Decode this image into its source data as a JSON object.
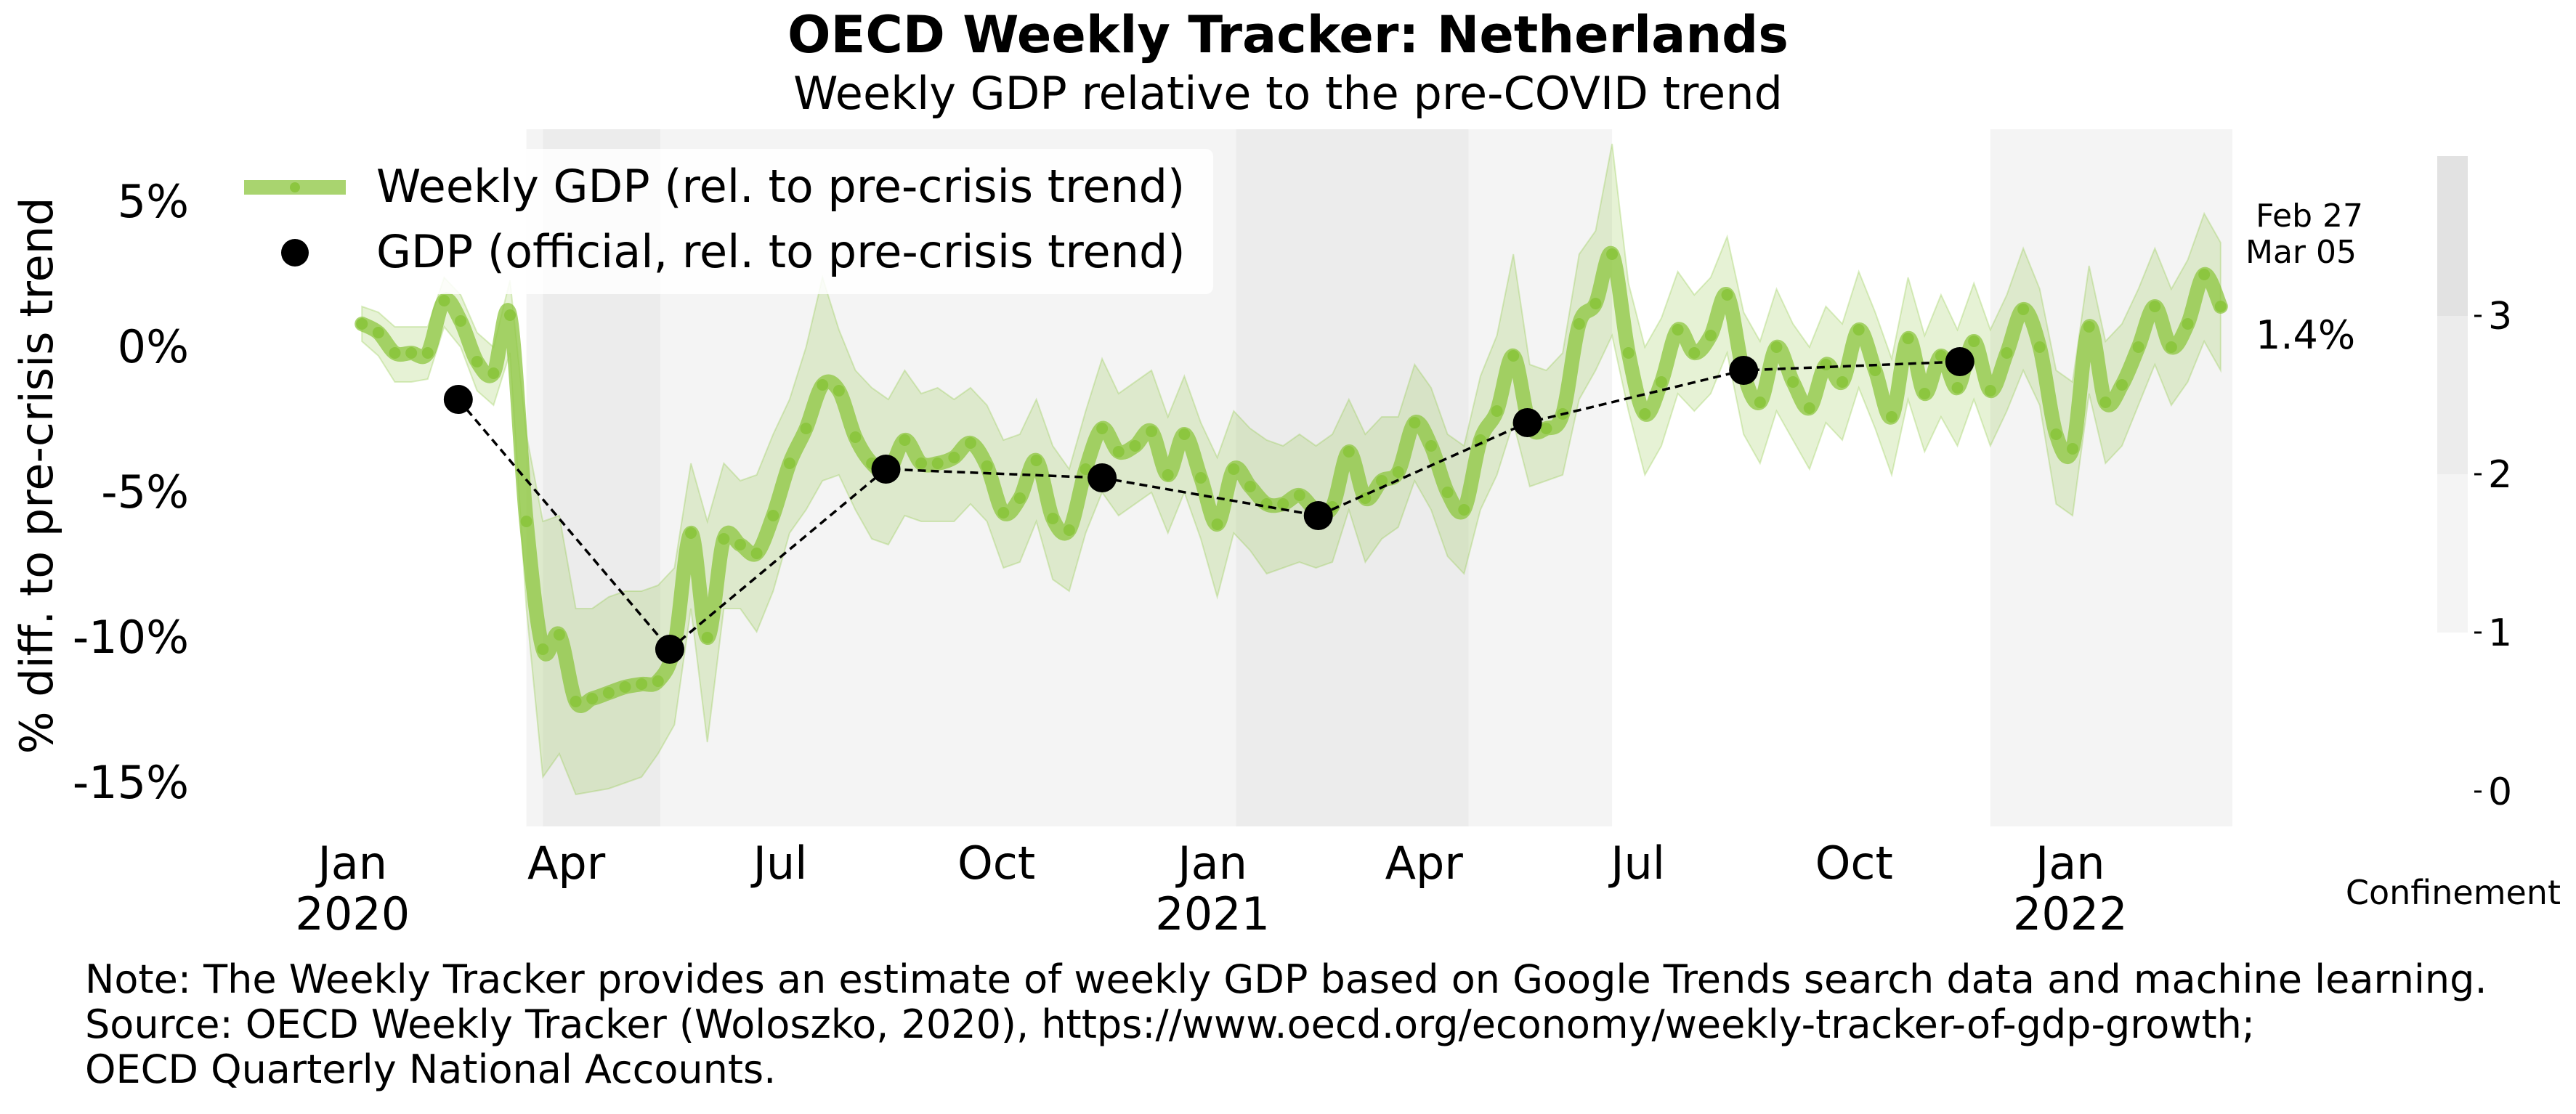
{
  "chart_data": {
    "type": "line",
    "title": "OECD Weekly Tracker: Netherlands",
    "subtitle": "Weekly GDP relative to the pre-COVID trend",
    "ylabel": "% diff. to pre-crisis trend",
    "ylim": [
      -16.5,
      7.5
    ],
    "yticks": [
      {
        "value": 5,
        "label": "5%"
      },
      {
        "value": 0,
        "label": "0%"
      },
      {
        "value": -5,
        "label": "-5%"
      },
      {
        "value": -10,
        "label": "-10%"
      },
      {
        "value": -15,
        "label": "-15%"
      }
    ],
    "xlim": [
      "2019-12-01",
      "2022-03-11"
    ],
    "xticks": [
      {
        "date": "2020-01-01",
        "label": "Jan",
        "year": "2020"
      },
      {
        "date": "2020-04-01",
        "label": "Apr",
        "year": ""
      },
      {
        "date": "2020-07-01",
        "label": "Jul",
        "year": ""
      },
      {
        "date": "2020-10-01",
        "label": "Oct",
        "year": ""
      },
      {
        "date": "2021-01-01",
        "label": "Jan",
        "year": "2021"
      },
      {
        "date": "2021-04-01",
        "label": "Apr",
        "year": ""
      },
      {
        "date": "2021-07-01",
        "label": "Jul",
        "year": ""
      },
      {
        "date": "2021-10-01",
        "label": "Oct",
        "year": ""
      },
      {
        "date": "2022-01-01",
        "label": "Jan",
        "year": "2022"
      }
    ],
    "legend": {
      "placement": "top-left",
      "weekly_label": "Weekly GDP (rel. to pre-crisis trend)",
      "official_label": "GDP (official, rel. to pre-crisis trend)"
    },
    "colors": {
      "weekly": "#8cc63f",
      "band": "#8cc63f",
      "official": "#000000",
      "conf1": "#f4f4f4",
      "conf2": "#ececec",
      "conf3": "#e2e2e2"
    },
    "confinement": {
      "label": "Confinement",
      "ticks": [
        "0",
        "1",
        "2",
        "3"
      ],
      "periods": [
        {
          "start": "2020-03-15",
          "end": "2020-03-22",
          "level": 1
        },
        {
          "start": "2020-03-22",
          "end": "2020-05-11",
          "level": 2
        },
        {
          "start": "2020-05-11",
          "end": "2021-01-11",
          "level": 1
        },
        {
          "start": "2021-01-11",
          "end": "2021-04-20",
          "level": 2
        },
        {
          "start": "2021-04-20",
          "end": "2021-06-20",
          "level": 1
        },
        {
          "start": "2021-11-28",
          "end": "2022-03-11",
          "level": 1
        }
      ]
    },
    "last_dates": [
      "Feb 27",
      "Mar 05"
    ],
    "last_value_label": "1.4%",
    "weekly": [
      {
        "date": "2020-01-05",
        "value": 0.8,
        "lo": 0.2,
        "hi": 1.4
      },
      {
        "date": "2020-01-12",
        "value": 0.5,
        "lo": -0.3,
        "hi": 1.2
      },
      {
        "date": "2020-01-19",
        "value": -0.2,
        "lo": -1.2,
        "hi": 0.7
      },
      {
        "date": "2020-01-26",
        "value": -0.2,
        "lo": -1.2,
        "hi": 0.7
      },
      {
        "date": "2020-02-02",
        "value": -0.2,
        "lo": -1.1,
        "hi": 0.7
      },
      {
        "date": "2020-02-09",
        "value": 1.6,
        "lo": 0.7,
        "hi": 2.4
      },
      {
        "date": "2020-02-16",
        "value": 0.9,
        "lo": 0.0,
        "hi": 1.8
      },
      {
        "date": "2020-02-23",
        "value": -0.5,
        "lo": -1.5,
        "hi": 0.5
      },
      {
        "date": "2020-03-01",
        "value": -0.9,
        "lo": -2.0,
        "hi": 0.0
      },
      {
        "date": "2020-03-08",
        "value": 1.1,
        "lo": -0.2,
        "hi": 2.3
      },
      {
        "date": "2020-03-15",
        "value": -6.0,
        "lo": -9.0,
        "hi": -3.0
      },
      {
        "date": "2020-03-22",
        "value": -10.4,
        "lo": -14.8,
        "hi": -6.0
      },
      {
        "date": "2020-03-29",
        "value": -9.9,
        "lo": -14.0,
        "hi": -5.8
      },
      {
        "date": "2020-04-05",
        "value": -12.2,
        "lo": -15.4,
        "hi": -9.0
      },
      {
        "date": "2020-04-12",
        "value": -12.1,
        "lo": -15.3,
        "hi": -9.0
      },
      {
        "date": "2020-04-19",
        "value": -11.9,
        "lo": -15.2,
        "hi": -8.6
      },
      {
        "date": "2020-04-26",
        "value": -11.7,
        "lo": -15.0,
        "hi": -8.4
      },
      {
        "date": "2020-05-03",
        "value": -11.6,
        "lo": -14.8,
        "hi": -8.4
      },
      {
        "date": "2020-05-10",
        "value": -11.5,
        "lo": -14.0,
        "hi": -8.2
      },
      {
        "date": "2020-05-17",
        "value": -10.3,
        "lo": -13.0,
        "hi": -7.6
      },
      {
        "date": "2020-05-24",
        "value": -6.4,
        "lo": -9.0,
        "hi": -4.0
      },
      {
        "date": "2020-05-31",
        "value": -10.0,
        "lo": -13.6,
        "hi": -6.0
      },
      {
        "date": "2020-06-07",
        "value": -6.6,
        "lo": -9.0,
        "hi": -4.0
      },
      {
        "date": "2020-06-14",
        "value": -6.8,
        "lo": -9.0,
        "hi": -4.6
      },
      {
        "date": "2020-06-21",
        "value": -7.1,
        "lo": -9.8,
        "hi": -4.4
      },
      {
        "date": "2020-06-28",
        "value": -5.8,
        "lo": -8.4,
        "hi": -3.0
      },
      {
        "date": "2020-07-05",
        "value": -4.0,
        "lo": -6.4,
        "hi": -1.8
      },
      {
        "date": "2020-07-12",
        "value": -2.8,
        "lo": -5.6,
        "hi": 0.0
      },
      {
        "date": "2020-07-19",
        "value": -1.3,
        "lo": -4.6,
        "hi": 2.4
      },
      {
        "date": "2020-07-26",
        "value": -1.5,
        "lo": -4.4,
        "hi": 0.6
      },
      {
        "date": "2020-08-02",
        "value": -3.1,
        "lo": -5.6,
        "hi": -0.8
      },
      {
        "date": "2020-08-09",
        "value": -4.0,
        "lo": -6.6,
        "hi": -1.4
      },
      {
        "date": "2020-08-16",
        "value": -4.3,
        "lo": -6.8,
        "hi": -1.8
      },
      {
        "date": "2020-08-23",
        "value": -3.2,
        "lo": -5.8,
        "hi": -0.8
      },
      {
        "date": "2020-08-30",
        "value": -4.0,
        "lo": -6.0,
        "hi": -1.6
      },
      {
        "date": "2020-09-06",
        "value": -4.0,
        "lo": -6.0,
        "hi": -1.4
      },
      {
        "date": "2020-09-13",
        "value": -3.8,
        "lo": -6.0,
        "hi": -1.8
      },
      {
        "date": "2020-09-20",
        "value": -3.3,
        "lo": -5.4,
        "hi": -1.4
      },
      {
        "date": "2020-09-27",
        "value": -4.1,
        "lo": -6.0,
        "hi": -2.0
      },
      {
        "date": "2020-10-04",
        "value": -5.7,
        "lo": -7.6,
        "hi": -3.2
      },
      {
        "date": "2020-10-11",
        "value": -5.2,
        "lo": -7.4,
        "hi": -3.0
      },
      {
        "date": "2020-10-18",
        "value": -3.9,
        "lo": -6.0,
        "hi": -1.8
      },
      {
        "date": "2020-10-25",
        "value": -5.9,
        "lo": -8.0,
        "hi": -3.4
      },
      {
        "date": "2020-11-01",
        "value": -6.3,
        "lo": -8.4,
        "hi": -4.2
      },
      {
        "date": "2020-11-08",
        "value": -4.2,
        "lo": -6.4,
        "hi": -2.2
      },
      {
        "date": "2020-11-15",
        "value": -2.8,
        "lo": -5.0,
        "hi": -0.4
      },
      {
        "date": "2020-11-22",
        "value": -3.6,
        "lo": -5.8,
        "hi": -1.6
      },
      {
        "date": "2020-11-29",
        "value": -3.4,
        "lo": -5.4,
        "hi": -1.2
      },
      {
        "date": "2020-12-06",
        "value": -2.9,
        "lo": -5.0,
        "hi": -0.8
      },
      {
        "date": "2020-12-13",
        "value": -4.4,
        "lo": -6.4,
        "hi": -2.4
      },
      {
        "date": "2020-12-20",
        "value": -3.0,
        "lo": -5.0,
        "hi": -1.0
      },
      {
        "date": "2020-12-27",
        "value": -4.5,
        "lo": -6.6,
        "hi": -2.6
      },
      {
        "date": "2021-01-03",
        "value": -6.1,
        "lo": -8.6,
        "hi": -3.8
      },
      {
        "date": "2021-01-10",
        "value": -4.2,
        "lo": -6.4,
        "hi": -2.2
      },
      {
        "date": "2021-01-17",
        "value": -4.8,
        "lo": -7.0,
        "hi": -2.8
      },
      {
        "date": "2021-01-24",
        "value": -5.4,
        "lo": -7.8,
        "hi": -3.2
      },
      {
        "date": "2021-01-31",
        "value": -5.4,
        "lo": -7.6,
        "hi": -3.4
      },
      {
        "date": "2021-02-07",
        "value": -5.1,
        "lo": -7.4,
        "hi": -3.0
      },
      {
        "date": "2021-02-14",
        "value": -5.6,
        "lo": -7.6,
        "hi": -3.4
      },
      {
        "date": "2021-02-21",
        "value": -5.5,
        "lo": -7.4,
        "hi": -3.0
      },
      {
        "date": "2021-02-28",
        "value": -3.6,
        "lo": -5.6,
        "hi": -1.8
      },
      {
        "date": "2021-03-07",
        "value": -5.2,
        "lo": -7.4,
        "hi": -3.0
      },
      {
        "date": "2021-03-14",
        "value": -4.6,
        "lo": -6.6,
        "hi": -2.4
      },
      {
        "date": "2021-03-21",
        "value": -4.3,
        "lo": -6.2,
        "hi": -2.4
      },
      {
        "date": "2021-03-28",
        "value": -2.6,
        "lo": -4.6,
        "hi": -0.6
      },
      {
        "date": "2021-04-04",
        "value": -3.4,
        "lo": -5.6,
        "hi": -1.4
      },
      {
        "date": "2021-04-11",
        "value": -5.0,
        "lo": -7.2,
        "hi": -3.0
      },
      {
        "date": "2021-04-18",
        "value": -5.6,
        "lo": -7.8,
        "hi": -3.4
      },
      {
        "date": "2021-04-25",
        "value": -3.2,
        "lo": -5.6,
        "hi": -1.0
      },
      {
        "date": "2021-05-02",
        "value": -2.2,
        "lo": -4.4,
        "hi": 0.4
      },
      {
        "date": "2021-05-09",
        "value": -0.3,
        "lo": -2.6,
        "hi": 3.2
      },
      {
        "date": "2021-05-16",
        "value": -2.7,
        "lo": -4.8,
        "hi": -0.6
      },
      {
        "date": "2021-05-23",
        "value": -2.8,
        "lo": -4.6,
        "hi": -0.8
      },
      {
        "date": "2021-05-30",
        "value": -2.3,
        "lo": -4.4,
        "hi": -0.2
      },
      {
        "date": "2021-06-06",
        "value": 0.8,
        "lo": -1.8,
        "hi": 3.2
      },
      {
        "date": "2021-06-13",
        "value": 1.5,
        "lo": -0.8,
        "hi": 4.0
      },
      {
        "date": "2021-06-20",
        "value": 3.2,
        "lo": 0.4,
        "hi": 7.0
      },
      {
        "date": "2021-06-27",
        "value": -0.2,
        "lo": -2.2,
        "hi": 2.2
      },
      {
        "date": "2021-07-04",
        "value": -2.3,
        "lo": -4.4,
        "hi": 0.0
      },
      {
        "date": "2021-07-11",
        "value": -1.2,
        "lo": -3.4,
        "hi": 1.0
      },
      {
        "date": "2021-07-18",
        "value": 0.6,
        "lo": -1.6,
        "hi": 2.6
      },
      {
        "date": "2021-07-25",
        "value": -0.2,
        "lo": -2.2,
        "hi": 1.8
      },
      {
        "date": "2021-08-01",
        "value": 0.4,
        "lo": -1.6,
        "hi": 2.4
      },
      {
        "date": "2021-08-08",
        "value": 1.8,
        "lo": -0.2,
        "hi": 3.8
      },
      {
        "date": "2021-08-15",
        "value": -0.9,
        "lo": -3.0,
        "hi": 1.2
      },
      {
        "date": "2021-08-22",
        "value": -1.9,
        "lo": -4.0,
        "hi": 0.2
      },
      {
        "date": "2021-08-29",
        "value": 0.0,
        "lo": -2.2,
        "hi": 2.0
      },
      {
        "date": "2021-09-05",
        "value": -1.2,
        "lo": -3.2,
        "hi": 0.8
      },
      {
        "date": "2021-09-12",
        "value": -2.1,
        "lo": -4.2,
        "hi": 0.0
      },
      {
        "date": "2021-09-19",
        "value": -0.6,
        "lo": -2.6,
        "hi": 1.4
      },
      {
        "date": "2021-09-26",
        "value": -1.2,
        "lo": -3.2,
        "hi": 0.8
      },
      {
        "date": "2021-10-03",
        "value": 0.6,
        "lo": -1.4,
        "hi": 2.6
      },
      {
        "date": "2021-10-10",
        "value": -0.8,
        "lo": -2.8,
        "hi": 1.2
      },
      {
        "date": "2021-10-17",
        "value": -2.4,
        "lo": -4.4,
        "hi": -0.4
      },
      {
        "date": "2021-10-24",
        "value": 0.3,
        "lo": -1.8,
        "hi": 2.4
      },
      {
        "date": "2021-10-31",
        "value": -1.6,
        "lo": -3.6,
        "hi": 0.4
      },
      {
        "date": "2021-11-07",
        "value": -0.3,
        "lo": -2.4,
        "hi": 1.8
      },
      {
        "date": "2021-11-14",
        "value": -1.4,
        "lo": -3.4,
        "hi": 0.6
      },
      {
        "date": "2021-11-21",
        "value": 0.2,
        "lo": -1.8,
        "hi": 2.2
      },
      {
        "date": "2021-11-28",
        "value": -1.5,
        "lo": -3.4,
        "hi": 0.6
      },
      {
        "date": "2021-12-05",
        "value": -0.2,
        "lo": -2.2,
        "hi": 1.8
      },
      {
        "date": "2021-12-12",
        "value": 1.3,
        "lo": -0.8,
        "hi": 3.4
      },
      {
        "date": "2021-12-19",
        "value": 0.0,
        "lo": -2.0,
        "hi": 2.0
      },
      {
        "date": "2021-12-26",
        "value": -3.0,
        "lo": -5.4,
        "hi": -0.8
      },
      {
        "date": "2022-01-02",
        "value": -3.5,
        "lo": -5.8,
        "hi": -1.2
      },
      {
        "date": "2022-01-09",
        "value": 0.7,
        "lo": -1.6,
        "hi": 2.8
      },
      {
        "date": "2022-01-16",
        "value": -1.9,
        "lo": -4.0,
        "hi": 0.2
      },
      {
        "date": "2022-01-23",
        "value": -1.3,
        "lo": -3.4,
        "hi": 0.8
      },
      {
        "date": "2022-01-30",
        "value": 0.0,
        "lo": -2.0,
        "hi": 2.0
      },
      {
        "date": "2022-02-06",
        "value": 1.4,
        "lo": -0.6,
        "hi": 3.4
      },
      {
        "date": "2022-02-13",
        "value": 0.0,
        "lo": -2.0,
        "hi": 2.0
      },
      {
        "date": "2022-02-20",
        "value": 0.8,
        "lo": -1.2,
        "hi": 3.0
      },
      {
        "date": "2022-02-27",
        "value": 2.5,
        "lo": 0.2,
        "hi": 4.6
      },
      {
        "date": "2022-03-06",
        "value": 1.4,
        "lo": -0.8,
        "hi": 3.6
      }
    ],
    "official": [
      {
        "date": "2020-02-15",
        "value": -1.8
      },
      {
        "date": "2020-05-15",
        "value": -10.4
      },
      {
        "date": "2020-08-15",
        "value": -4.2
      },
      {
        "date": "2020-11-15",
        "value": -4.5
      },
      {
        "date": "2021-02-15",
        "value": -5.8
      },
      {
        "date": "2021-05-15",
        "value": -2.6
      },
      {
        "date": "2021-08-15",
        "value": -0.8
      },
      {
        "date": "2021-11-15",
        "value": -0.5
      }
    ]
  },
  "note": {
    "line1": "Note: The Weekly Tracker provides an estimate of weekly GDP based on Google Trends search data and machine learning.",
    "line2": "Source: OECD Weekly Tracker (Woloszko, 2020), https://www.oecd.org/economy/weekly-tracker-of-gdp-growth;",
    "line3": "OECD Quarterly National Accounts."
  }
}
